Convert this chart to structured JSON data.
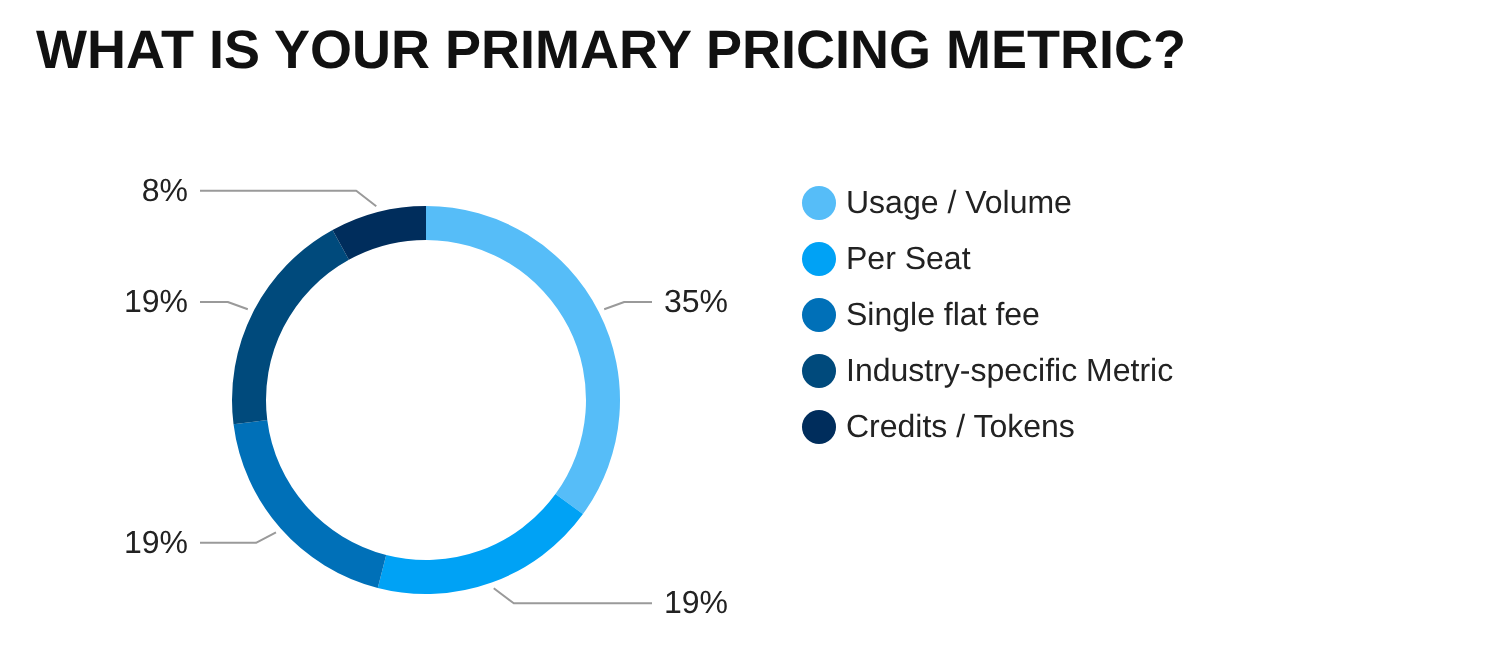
{
  "chart_data": {
    "type": "donut",
    "title": "WHAT IS YOUR PRIMARY PRICING METRIC?",
    "categories": [
      "Usage / Volume",
      "Per Seat",
      "Single flat fee",
      "Industry-specific Metric",
      "Credits / Tokens"
    ],
    "values": [
      35,
      19,
      19,
      19,
      8
    ],
    "colors": [
      "#56bdf8",
      "#00a2f5",
      "#0070b8",
      "#004a7c",
      "#002d5c"
    ],
    "value_labels": [
      "35%",
      "19%",
      "19%",
      "19%",
      "8%"
    ],
    "legend": "right"
  }
}
